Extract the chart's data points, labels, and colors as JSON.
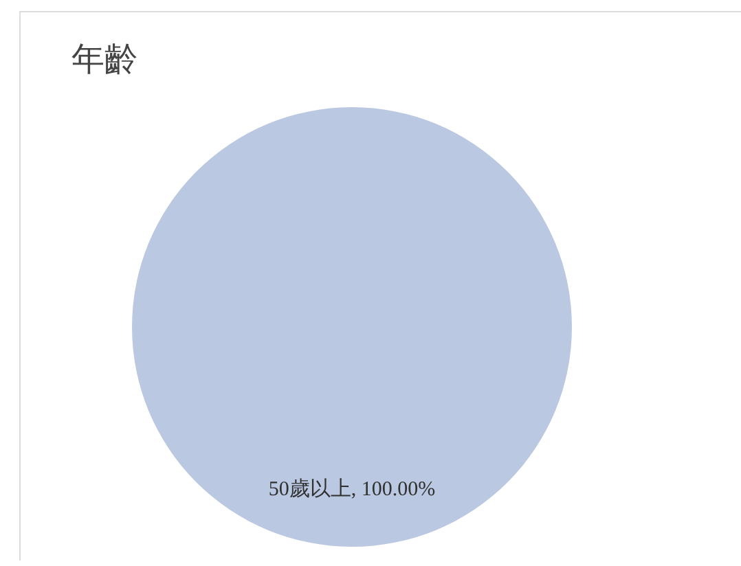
{
  "chart_data": {
    "type": "pie",
    "title": "年齡",
    "categories": [
      "50歲以上"
    ],
    "values": [
      100
    ],
    "colors": [
      "#bac8e1"
    ],
    "value_labels": [
      "100.00%"
    ],
    "legend": false
  }
}
